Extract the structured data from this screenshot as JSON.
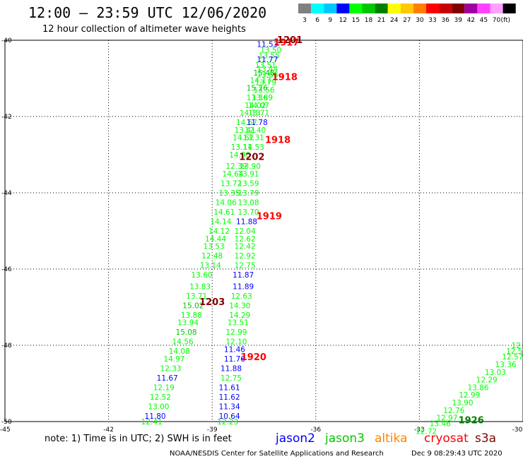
{
  "title": "12:00 – 23:59 UTC 12/06/2020",
  "subtitle": "12 hour collection of altimeter wave heights",
  "legend": {
    "labels": [
      "3",
      "6",
      "9",
      "12",
      "15",
      "18",
      "21",
      "24",
      "27",
      "30",
      "33",
      "36",
      "39",
      "42",
      "45",
      "70",
      "(ft)"
    ],
    "colors": [
      "#808080",
      "#00ffff",
      "#00c8ff",
      "#0000ff",
      "#00ff00",
      "#00c800",
      "#008000",
      "#ffff00",
      "#ffc800",
      "#ff8000",
      "#ff0000",
      "#c80000",
      "#800000",
      "#a000a0",
      "#ff40ff",
      "#ffa0ff",
      "#000000"
    ]
  },
  "axes": {
    "x_ticks": [
      "-42",
      "-39",
      "-36",
      "-33",
      "-30"
    ],
    "x_corner": "-45",
    "y_ticks": [
      "-40",
      "-42",
      "-44",
      "-46",
      "-48",
      "-50"
    ]
  },
  "chart_data": {
    "type": "scatter",
    "title": "12:00 – 23:59 UTC 12/06/2020",
    "subtitle": "12 hour collection of altimeter wave heights",
    "xlim": [
      -45,
      -30
    ],
    "ylim": [
      -50,
      -40
    ],
    "grid": true,
    "units": "ft",
    "series": [
      {
        "name": "jason2",
        "color": "#0000ff",
        "points": []
      },
      {
        "name": "jason3",
        "color": "#00c800",
        "points": []
      },
      {
        "name": "altika",
        "color": "#ff8000",
        "points": []
      },
      {
        "name": "cryosat",
        "color": "#ff0000",
        "points": []
      },
      {
        "name": "s3a",
        "color": "#800000",
        "points": []
      }
    ],
    "observations": [
      {
        "lon": -37.4,
        "lat": -40.1,
        "v": "11.53",
        "c": "#0000ff"
      },
      {
        "lon": -37.3,
        "lat": -40.25,
        "v": "13.50",
        "c": "#00ff00"
      },
      {
        "lon": -37.35,
        "lat": -40.4,
        "v": "13.55",
        "c": "#00ff00"
      },
      {
        "lon": -37.4,
        "lat": -40.5,
        "v": "11.77",
        "c": "#0000ff"
      },
      {
        "lon": -37.45,
        "lat": -40.65,
        "v": "13.51",
        "c": "#00ff00"
      },
      {
        "lon": -37.4,
        "lat": -40.75,
        "v": "13.44",
        "c": "#00ff00"
      },
      {
        "lon": -37.5,
        "lat": -40.85,
        "v": "15.48",
        "c": "#00c800"
      },
      {
        "lon": -37.4,
        "lat": -40.9,
        "v": "13.66",
        "c": "#00ff00"
      },
      {
        "lon": -37.6,
        "lat": -41.05,
        "v": "14.17",
        "c": "#00ff00"
      },
      {
        "lon": -37.45,
        "lat": -41.1,
        "v": "13.79",
        "c": "#00ff00"
      },
      {
        "lon": -37.7,
        "lat": -41.25,
        "v": "15.26",
        "c": "#00c800"
      },
      {
        "lon": -37.5,
        "lat": -41.3,
        "v": "13.56",
        "c": "#00ff00"
      },
      {
        "lon": -37.7,
        "lat": -41.5,
        "v": "13.36",
        "c": "#00ff00"
      },
      {
        "lon": -37.55,
        "lat": -41.5,
        "v": "13.89",
        "c": "#00ff00"
      },
      {
        "lon": -37.75,
        "lat": -41.7,
        "v": "14.02",
        "c": "#00ff00"
      },
      {
        "lon": -37.65,
        "lat": -41.7,
        "v": "14.07",
        "c": "#00ff00"
      },
      {
        "lon": -37.9,
        "lat": -41.9,
        "v": "14.13",
        "c": "#00ff00"
      },
      {
        "lon": -37.65,
        "lat": -41.9,
        "v": "13.71",
        "c": "#00ff00"
      },
      {
        "lon": -38.0,
        "lat": -42.15,
        "v": "14.67",
        "c": "#00ff00"
      },
      {
        "lon": -37.7,
        "lat": -42.15,
        "v": "11.78",
        "c": "#0000ff"
      },
      {
        "lon": -38.05,
        "lat": -42.35,
        "v": "13.41",
        "c": "#00ff00"
      },
      {
        "lon": -37.75,
        "lat": -42.35,
        "v": "12.40",
        "c": "#00ff00"
      },
      {
        "lon": -38.1,
        "lat": -42.55,
        "v": "14.62",
        "c": "#00ff00"
      },
      {
        "lon": -37.8,
        "lat": -42.55,
        "v": "13.31",
        "c": "#00ff00"
      },
      {
        "lon": -38.15,
        "lat": -42.8,
        "v": "13.11",
        "c": "#00ff00"
      },
      {
        "lon": -37.8,
        "lat": -42.8,
        "v": "14.53",
        "c": "#00ff00"
      },
      {
        "lon": -38.2,
        "lat": -43.0,
        "v": "14.90",
        "c": "#00ff00"
      },
      {
        "lon": -38.3,
        "lat": -43.3,
        "v": "12.39",
        "c": "#00ff00"
      },
      {
        "lon": -37.9,
        "lat": -43.3,
        "v": "13.90",
        "c": "#00ff00"
      },
      {
        "lon": -38.4,
        "lat": -43.5,
        "v": "14.64",
        "c": "#00ff00"
      },
      {
        "lon": -37.95,
        "lat": -43.5,
        "v": "13.91",
        "c": "#00ff00"
      },
      {
        "lon": -38.45,
        "lat": -43.75,
        "v": "13.72",
        "c": "#00ff00"
      },
      {
        "lon": -37.95,
        "lat": -43.75,
        "v": "13.59",
        "c": "#00ff00"
      },
      {
        "lon": -38.5,
        "lat": -44.0,
        "v": "13.35",
        "c": "#00ff00"
      },
      {
        "lon": -37.95,
        "lat": -44.0,
        "v": "13.79",
        "c": "#00ff00"
      },
      {
        "lon": -38.6,
        "lat": -44.25,
        "v": "14.06",
        "c": "#00ff00"
      },
      {
        "lon": -37.95,
        "lat": -44.25,
        "v": "13.08",
        "c": "#00ff00"
      },
      {
        "lon": -38.65,
        "lat": -44.5,
        "v": "14.61",
        "c": "#00ff00"
      },
      {
        "lon": -37.95,
        "lat": -44.5,
        "v": "13.70",
        "c": "#00ff00"
      },
      {
        "lon": -38.75,
        "lat": -44.75,
        "v": "14.14",
        "c": "#00ff00"
      },
      {
        "lon": -38.0,
        "lat": -44.75,
        "v": "11.88",
        "c": "#0000ff"
      },
      {
        "lon": -38.8,
        "lat": -45.0,
        "v": "14.12",
        "c": "#00ff00"
      },
      {
        "lon": -38.05,
        "lat": -45.0,
        "v": "12.04",
        "c": "#00ff00"
      },
      {
        "lon": -38.9,
        "lat": -45.2,
        "v": "14.44",
        "c": "#00ff00"
      },
      {
        "lon": -38.05,
        "lat": -45.2,
        "v": "12.62",
        "c": "#00ff00"
      },
      {
        "lon": -38.95,
        "lat": -45.4,
        "v": "13.53",
        "c": "#00ff00"
      },
      {
        "lon": -38.05,
        "lat": -45.4,
        "v": "12.42",
        "c": "#00ff00"
      },
      {
        "lon": -39.0,
        "lat": -45.65,
        "v": "12.48",
        "c": "#00ff00"
      },
      {
        "lon": -38.05,
        "lat": -45.65,
        "v": "12.92",
        "c": "#00ff00"
      },
      {
        "lon": -39.05,
        "lat": -45.9,
        "v": "13.14",
        "c": "#00ff00"
      },
      {
        "lon": -38.05,
        "lat": -45.9,
        "v": "12.75",
        "c": "#00ff00"
      },
      {
        "lon": -39.3,
        "lat": -46.15,
        "v": "13.60",
        "c": "#00ff00"
      },
      {
        "lon": -38.1,
        "lat": -46.15,
        "v": "11.87",
        "c": "#0000ff"
      },
      {
        "lon": -39.35,
        "lat": -46.45,
        "v": "13.83",
        "c": "#00ff00"
      },
      {
        "lon": -38.1,
        "lat": -46.45,
        "v": "11.89",
        "c": "#0000ff"
      },
      {
        "lon": -39.45,
        "lat": -46.7,
        "v": "13.71",
        "c": "#00ff00"
      },
      {
        "lon": -38.15,
        "lat": -46.7,
        "v": "12.63",
        "c": "#00ff00"
      },
      {
        "lon": -39.55,
        "lat": -46.95,
        "v": "15.02",
        "c": "#00c800"
      },
      {
        "lon": -38.2,
        "lat": -46.95,
        "v": "14.30",
        "c": "#00ff00"
      },
      {
        "lon": -39.6,
        "lat": -47.2,
        "v": "13.88",
        "c": "#00ff00"
      },
      {
        "lon": -38.2,
        "lat": -47.2,
        "v": "14.29",
        "c": "#00ff00"
      },
      {
        "lon": -39.7,
        "lat": -47.4,
        "v": "13.94",
        "c": "#00ff00"
      },
      {
        "lon": -38.25,
        "lat": -47.4,
        "v": "13.51",
        "c": "#00ff00"
      },
      {
        "lon": -39.75,
        "lat": -47.65,
        "v": "15.08",
        "c": "#00c800"
      },
      {
        "lon": -38.3,
        "lat": -47.65,
        "v": "12.99",
        "c": "#00ff00"
      },
      {
        "lon": -39.85,
        "lat": -47.9,
        "v": "14.56",
        "c": "#00ff00"
      },
      {
        "lon": -38.3,
        "lat": -47.9,
        "v": "12.10",
        "c": "#00ff00"
      },
      {
        "lon": -39.95,
        "lat": -48.15,
        "v": "14.08",
        "c": "#00ff00"
      },
      {
        "lon": -38.35,
        "lat": -48.1,
        "v": "11.46",
        "c": "#0000ff"
      },
      {
        "lon": -40.1,
        "lat": -48.35,
        "v": "14.97",
        "c": "#00ff00"
      },
      {
        "lon": -38.35,
        "lat": -48.35,
        "v": "11.76",
        "c": "#0000ff"
      },
      {
        "lon": -40.2,
        "lat": -48.6,
        "v": "12.33",
        "c": "#00ff00"
      },
      {
        "lon": -38.45,
        "lat": -48.6,
        "v": "11.88",
        "c": "#0000ff"
      },
      {
        "lon": -40.3,
        "lat": -48.85,
        "v": "11.67",
        "c": "#0000ff"
      },
      {
        "lon": -38.45,
        "lat": -48.85,
        "v": "12.75",
        "c": "#00ff00"
      },
      {
        "lon": -40.4,
        "lat": -49.1,
        "v": "12.19",
        "c": "#00ff00"
      },
      {
        "lon": -38.5,
        "lat": -49.1,
        "v": "11.61",
        "c": "#0000ff"
      },
      {
        "lon": -40.5,
        "lat": -49.35,
        "v": "12.52",
        "c": "#00ff00"
      },
      {
        "lon": -38.5,
        "lat": -49.35,
        "v": "11.62",
        "c": "#0000ff"
      },
      {
        "lon": -40.55,
        "lat": -49.6,
        "v": "13.00",
        "c": "#00ff00"
      },
      {
        "lon": -38.5,
        "lat": -49.6,
        "v": "11.34",
        "c": "#0000ff"
      },
      {
        "lon": -40.65,
        "lat": -49.85,
        "v": "11.80",
        "c": "#0000ff"
      },
      {
        "lon": -38.5,
        "lat": -49.85,
        "v": "10.64",
        "c": "#0000ff"
      },
      {
        "lon": -40.75,
        "lat": -50.0,
        "v": "12.41",
        "c": "#00ff00"
      },
      {
        "lon": -38.55,
        "lat": -50.0,
        "v": "12.23",
        "c": "#00ff00"
      },
      {
        "lon": -30.2,
        "lat": -48.0,
        "v": "12",
        "c": "#00ff00"
      },
      {
        "lon": -30.25,
        "lat": -48.15,
        "v": "12.5",
        "c": "#00ff00"
      },
      {
        "lon": -30.3,
        "lat": -48.3,
        "v": "12.57",
        "c": "#00ff00"
      },
      {
        "lon": -30.5,
        "lat": -48.5,
        "v": "13.36",
        "c": "#00ff00"
      },
      {
        "lon": -30.8,
        "lat": -48.7,
        "v": "13.03",
        "c": "#00ff00"
      },
      {
        "lon": -31.05,
        "lat": -48.9,
        "v": "12.29",
        "c": "#00ff00"
      },
      {
        "lon": -31.3,
        "lat": -49.1,
        "v": "13.86",
        "c": "#00ff00"
      },
      {
        "lon": -31.55,
        "lat": -49.3,
        "v": "12.99",
        "c": "#00ff00"
      },
      {
        "lon": -31.75,
        "lat": -49.5,
        "v": "13.90",
        "c": "#00ff00"
      },
      {
        "lon": -32.0,
        "lat": -49.7,
        "v": "12.76",
        "c": "#00ff00"
      },
      {
        "lon": -32.2,
        "lat": -49.9,
        "v": "12.97",
        "c": "#00ff00"
      },
      {
        "lon": -32.4,
        "lat": -50.05,
        "v": "13.46",
        "c": "#00ff00"
      },
      {
        "lon": -32.8,
        "lat": -50.25,
        "v": "12.72",
        "c": "#00ff00"
      }
    ],
    "pass_times": [
      {
        "lon": -36.75,
        "lat": -39.98,
        "t": "1201",
        "c": "#800000"
      },
      {
        "lon": -36.85,
        "lat": -40.05,
        "t": "1917",
        "c": "#ff0000"
      },
      {
        "lon": -36.9,
        "lat": -40.95,
        "t": "1918",
        "c": "#ff0000"
      },
      {
        "lon": -37.1,
        "lat": -42.6,
        "t": "1918",
        "c": "#ff0000"
      },
      {
        "lon": -37.85,
        "lat": -43.05,
        "t": "1202",
        "c": "#800000"
      },
      {
        "lon": -37.35,
        "lat": -44.6,
        "t": "1919",
        "c": "#ff0000"
      },
      {
        "lon": -39.0,
        "lat": -46.85,
        "t": "1203",
        "c": "#800000"
      },
      {
        "lon": -37.8,
        "lat": -48.3,
        "t": "1920",
        "c": "#ff0000"
      },
      {
        "lon": -31.5,
        "lat": -49.95,
        "t": "1926",
        "c": "#008000"
      }
    ]
  },
  "footer": {
    "note": "note:  1) Time is in UTC; 2) SWH is in feet",
    "satellites": [
      {
        "name": "jason2",
        "color": "#0000ff"
      },
      {
        "name": "jason3",
        "color": "#00c800"
      },
      {
        "name": "altika",
        "color": "#ff8000"
      },
      {
        "name": "cryosat",
        "color": "#ff0000"
      },
      {
        "name": "s3a",
        "color": "#800000"
      }
    ],
    "credit": "NOAA/NESDIS Center for Satellite Applications and Research",
    "generated": "Dec  9 08:29:43 UTC 2020"
  }
}
